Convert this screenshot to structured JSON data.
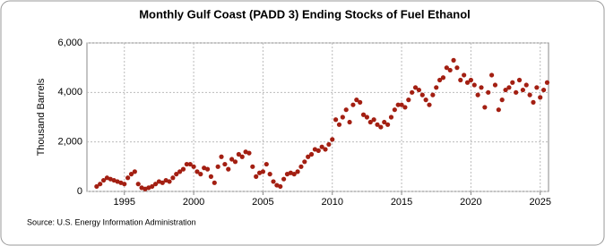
{
  "chart_data": {
    "type": "scatter",
    "title": "Monthly Gulf Coast (PADD 3) Ending Stocks of Fuel Ethanol",
    "y_label": "Thousand Barrels",
    "source": "Source: U.S. Energy Information Administration",
    "color": "#a31f12",
    "grid": true,
    "xlim": [
      1992.3,
      2025.6
    ],
    "xticks": [
      1995,
      2000,
      2005,
      2010,
      2015,
      2020,
      2025
    ],
    "ylim": [
      0,
      6000
    ],
    "yticks": [
      0,
      {
        "value": 2000,
        "label": "2,000"
      },
      {
        "value": 4000,
        "label": "4,000"
      },
      {
        "value": 6000,
        "label": "6,000"
      }
    ],
    "x": [
      1993,
      1993.25,
      1993.5,
      1993.75,
      1994,
      1994.25,
      1994.5,
      1994.75,
      1995,
      1995.25,
      1995.5,
      1995.75,
      1996,
      1996.25,
      1996.5,
      1996.75,
      1997,
      1997.25,
      1997.5,
      1997.75,
      1998,
      1998.25,
      1998.5,
      1998.75,
      1999,
      1999.25,
      1999.5,
      1999.75,
      2000,
      2000.25,
      2000.5,
      2000.75,
      2001,
      2001.25,
      2001.5,
      2001.75,
      2002,
      2002.25,
      2002.5,
      2002.75,
      2003,
      2003.25,
      2003.5,
      2003.75,
      2004,
      2004.25,
      2004.5,
      2004.75,
      2005,
      2005.25,
      2005.5,
      2005.75,
      2006,
      2006.25,
      2006.5,
      2006.75,
      2007,
      2007.25,
      2007.5,
      2007.75,
      2008,
      2008.25,
      2008.5,
      2008.75,
      2009,
      2009.25,
      2009.5,
      2009.75,
      2010,
      2010.25,
      2010.5,
      2010.75,
      2011,
      2011.25,
      2011.5,
      2011.75,
      2012,
      2012.25,
      2012.5,
      2012.75,
      2013,
      2013.25,
      2013.5,
      2013.75,
      2014,
      2014.25,
      2014.5,
      2014.75,
      2015,
      2015.25,
      2015.5,
      2015.75,
      2016,
      2016.25,
      2016.5,
      2016.75,
      2017,
      2017.25,
      2017.5,
      2017.75,
      2018,
      2018.25,
      2018.5,
      2018.75,
      2019,
      2019.25,
      2019.5,
      2019.75,
      2020,
      2020.25,
      2020.5,
      2020.75,
      2021,
      2021.25,
      2021.5,
      2021.75,
      2022,
      2022.25,
      2022.5,
      2022.75,
      2023,
      2023.25,
      2023.5,
      2023.75,
      2024,
      2024.25,
      2024.5,
      2024.75,
      2025,
      2025.25,
      2025.5
    ],
    "values": [
      200,
      300,
      450,
      550,
      500,
      450,
      400,
      350,
      300,
      550,
      700,
      800,
      300,
      150,
      100,
      150,
      200,
      300,
      400,
      350,
      450,
      400,
      550,
      700,
      800,
      900,
      1100,
      1100,
      1000,
      800,
      700,
      950,
      900,
      600,
      350,
      1000,
      1400,
      1100,
      900,
      1300,
      1200,
      1500,
      1400,
      1600,
      1550,
      1000,
      600,
      750,
      800,
      1100,
      700,
      400,
      250,
      200,
      500,
      700,
      750,
      700,
      800,
      1000,
      1200,
      1400,
      1500,
      1700,
      1650,
      1800,
      1700,
      1900,
      2100,
      2900,
      2700,
      3000,
      3300,
      2800,
      3500,
      3700,
      3600,
      3100,
      3000,
      2800,
      2900,
      2700,
      2600,
      2800,
      2700,
      3000,
      3300,
      3500,
      3500,
      3400,
      3700,
      4000,
      4200,
      4100,
      3900,
      3700,
      3500,
      3900,
      4200,
      4500,
      4600,
      5000,
      4900,
      5300,
      5000,
      4500,
      4700,
      4400,
      4500,
      4300,
      3900,
      4200,
      3400,
      4000,
      4700,
      4300,
      3300,
      3700,
      4100,
      4200,
      4400,
      4000,
      4500,
      4100,
      4300,
      3900,
      3600,
      4200,
      3800,
      4100,
      4400
    ]
  }
}
